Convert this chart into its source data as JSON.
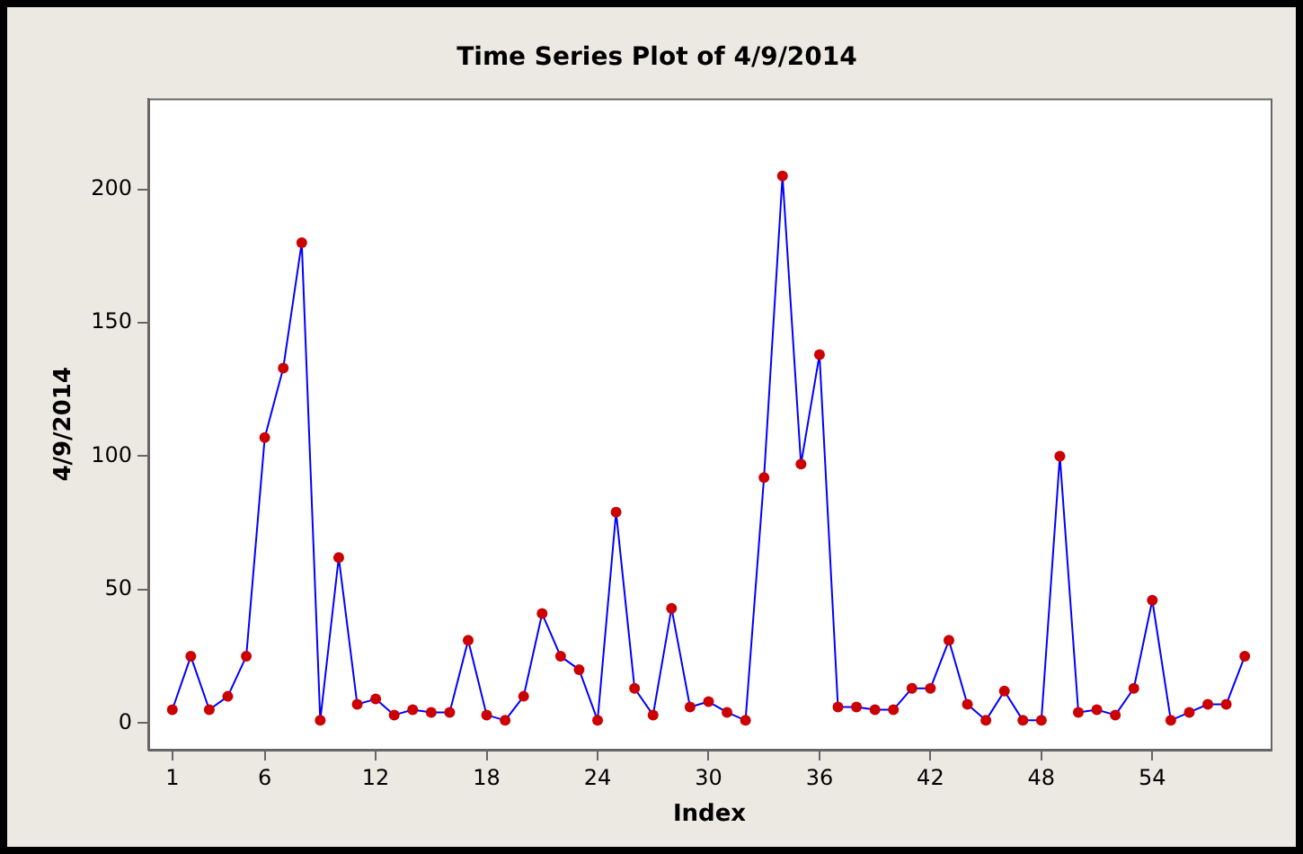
{
  "chart_data": {
    "type": "line",
    "title": "Time Series Plot of 4/9/2014",
    "xlabel": "Index",
    "ylabel": "4/9/2014",
    "x": [
      1,
      2,
      3,
      4,
      5,
      6,
      7,
      8,
      9,
      10,
      11,
      12,
      13,
      14,
      15,
      16,
      17,
      18,
      19,
      20,
      21,
      22,
      23,
      24,
      25,
      26,
      27,
      28,
      29,
      30,
      31,
      32,
      33,
      34,
      35,
      36,
      37,
      38,
      39,
      40,
      41,
      42,
      43,
      44,
      45,
      46,
      47,
      48,
      49,
      50,
      51,
      52,
      53,
      54,
      55,
      56,
      57,
      58,
      59
    ],
    "series": [
      {
        "color": "#0000ff",
        "values": [
          5,
          25,
          5,
          10,
          25,
          107,
          133,
          180,
          1,
          62,
          7,
          9,
          3,
          5,
          4,
          4,
          31,
          3,
          1,
          10,
          41,
          25,
          20,
          1,
          79,
          13,
          3,
          43,
          6,
          8,
          4,
          1,
          92,
          205,
          97,
          138,
          6,
          6,
          5,
          5,
          13,
          13,
          31,
          7,
          1,
          12,
          1,
          1,
          100,
          4,
          5,
          3,
          13,
          46,
          1,
          4,
          7,
          7,
          25
        ]
      }
    ],
    "marker": "circle",
    "line_style": "solid",
    "grid": false,
    "legend": false,
    "xlim": [
      -0.3,
      60.4
    ],
    "xticks": [
      1,
      6,
      12,
      18,
      24,
      30,
      36,
      42,
      48,
      54
    ],
    "ylim": [
      -10,
      234
    ],
    "yticks": [
      0,
      50,
      100,
      150,
      200
    ]
  }
}
